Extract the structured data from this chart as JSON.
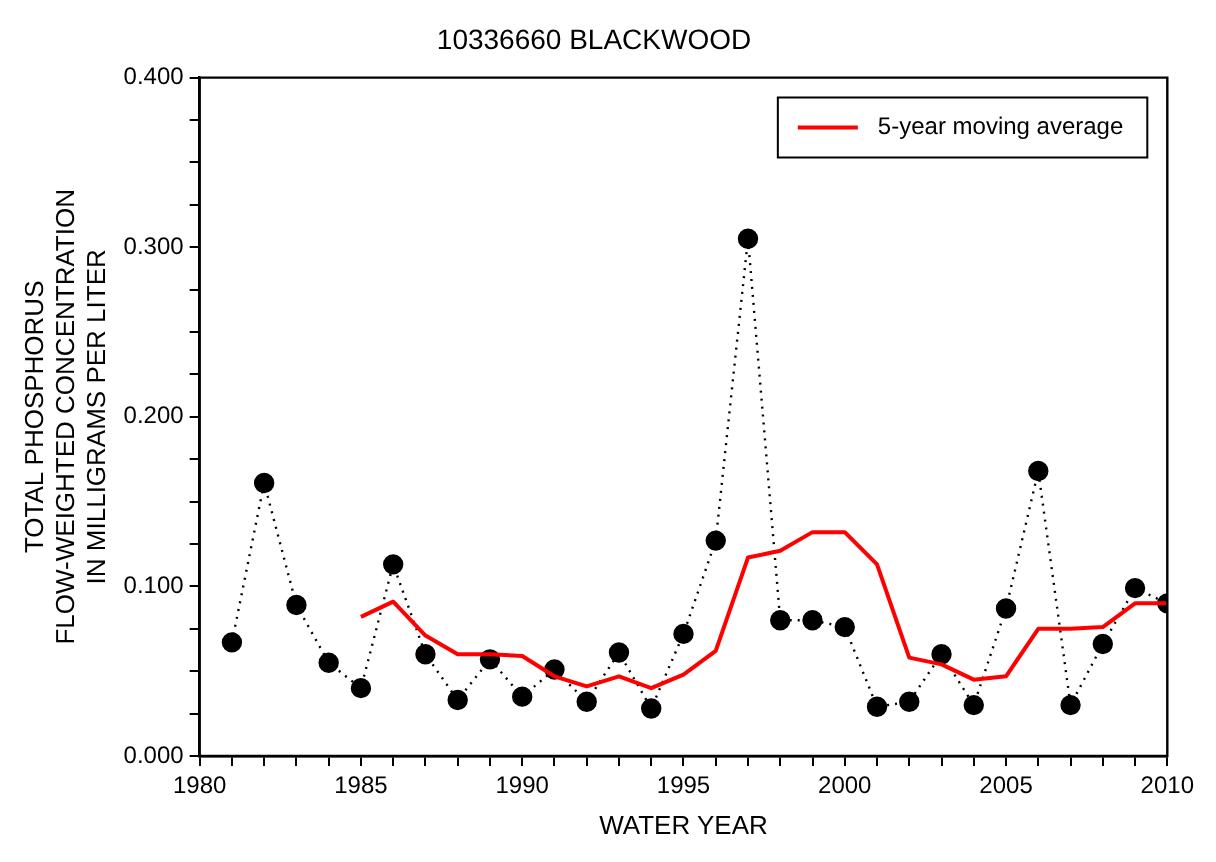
{
  "chart_data": {
    "type": "line",
    "title": "10336660 BLACKWOOD",
    "xlabel": "WATER YEAR",
    "ylabel": "TOTAL PHOSPHORUS\nFLOW-WEIGHTED CONCENTRATION\nIN MILLIGRAMS PER LITER",
    "xlim": [
      1980,
      2010
    ],
    "xticks": [
      1980,
      {
        "value": 1981,
        "label": null
      },
      {
        "value": 1982,
        "label": null
      },
      {
        "value": 1983,
        "label": null
      },
      {
        "value": 1984,
        "label": null
      },
      1985,
      {
        "value": 1986,
        "label": null
      },
      {
        "value": 1987,
        "label": null
      },
      {
        "value": 1988,
        "label": null
      },
      {
        "value": 1989,
        "label": null
      },
      1990,
      {
        "value": 1991,
        "label": null
      },
      {
        "value": 1992,
        "label": null
      },
      {
        "value": 1993,
        "label": null
      },
      {
        "value": 1994,
        "label": null
      },
      1995,
      {
        "value": 1996,
        "label": null
      },
      {
        "value": 1997,
        "label": null
      },
      {
        "value": 1998,
        "label": null
      },
      {
        "value": 1999,
        "label": null
      },
      2000,
      {
        "value": 2001,
        "label": null
      },
      {
        "value": 2002,
        "label": null
      },
      {
        "value": 2003,
        "label": null
      },
      {
        "value": 2004,
        "label": null
      },
      2005,
      {
        "value": 2006,
        "label": null
      },
      {
        "value": 2007,
        "label": null
      },
      {
        "value": 2008,
        "label": null
      },
      {
        "value": 2009,
        "label": null
      },
      2010
    ],
    "ylim": [
      0,
      0.4
    ],
    "yticks": [
      {
        "value": 0,
        "label": "0.000"
      },
      {
        "value": 0.025,
        "label": null
      },
      {
        "value": 0.05,
        "label": null
      },
      {
        "value": 0.075,
        "label": null
      },
      {
        "value": 0.1,
        "label": "0.100"
      },
      {
        "value": 0.125,
        "label": null
      },
      {
        "value": 0.15,
        "label": null
      },
      {
        "value": 0.175,
        "label": null
      },
      {
        "value": 0.2,
        "label": "0.200"
      },
      {
        "value": 0.225,
        "label": null
      },
      {
        "value": 0.25,
        "label": null
      },
      {
        "value": 0.275,
        "label": null
      },
      {
        "value": 0.3,
        "label": "0.300"
      },
      {
        "value": 0.325,
        "label": null
      },
      {
        "value": 0.35,
        "label": null
      },
      {
        "value": 0.375,
        "label": null
      },
      {
        "value": 0.4,
        "label": "0.400"
      }
    ],
    "grid": false,
    "legend": "top right",
    "series": [
      {
        "color": "#000000",
        "marker": "circle",
        "line_style": "dotted",
        "x": [
          1981,
          1982,
          1983,
          1984,
          1985,
          1986,
          1987,
          1988,
          1989,
          1990,
          1991,
          1992,
          1993,
          1994,
          1995,
          1996,
          1997,
          1998,
          1999,
          2000,
          2001,
          2002,
          2003,
          2004,
          2005,
          2006,
          2007,
          2008,
          2009,
          2010
        ],
        "values": [
          0.067,
          0.161,
          0.089,
          0.055,
          0.04,
          0.113,
          0.06,
          0.033,
          0.057,
          0.035,
          0.051,
          0.032,
          0.061,
          0.028,
          0.072,
          0.127,
          0.305,
          0.08,
          0.08,
          0.076,
          0.029,
          0.032,
          0.06,
          0.03,
          0.087,
          0.168,
          0.03,
          0.066,
          0.099,
          0.09
        ]
      },
      {
        "name": "5-year moving average",
        "color": "#ff0000",
        "marker": "none",
        "line_style": "solid",
        "x": [
          1985,
          1986,
          1987,
          1988,
          1989,
          1990,
          1991,
          1992,
          1993,
          1994,
          1995,
          1996,
          1997,
          1998,
          1999,
          2000,
          2001,
          2002,
          2003,
          2004,
          2005,
          2006,
          2007,
          2008,
          2009,
          2010
        ],
        "values": [
          0.082,
          0.091,
          0.071,
          0.06,
          0.06,
          0.059,
          0.047,
          0.041,
          0.047,
          0.04,
          0.048,
          0.062,
          0.117,
          0.121,
          0.132,
          0.132,
          0.113,
          0.058,
          0.054,
          0.045,
          0.047,
          0.075,
          0.075,
          0.076,
          0.09,
          0.09
        ]
      }
    ]
  }
}
